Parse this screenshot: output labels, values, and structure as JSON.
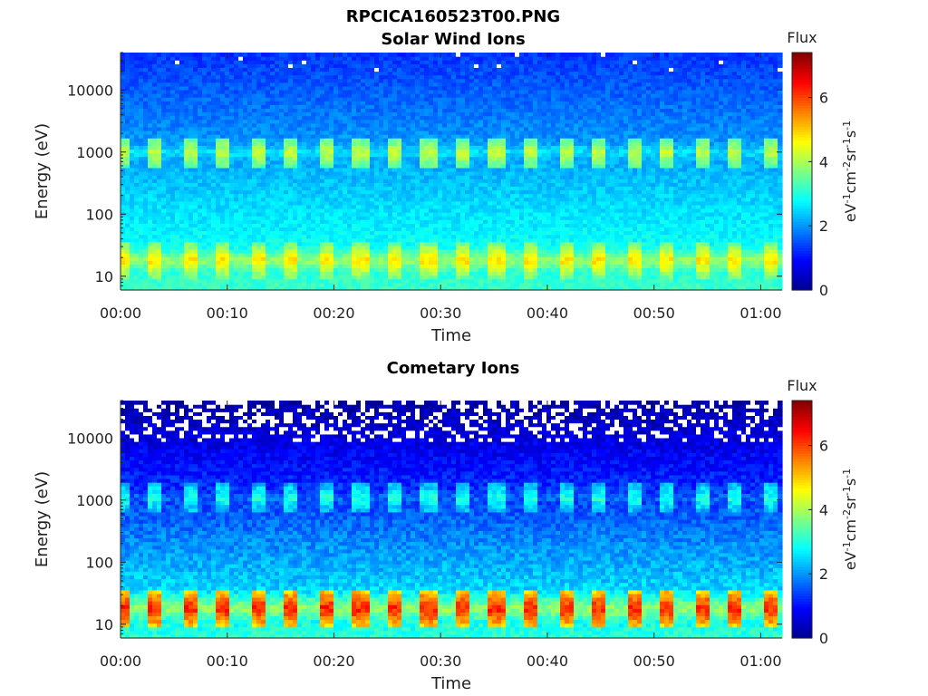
{
  "figure": {
    "title": "RPCICA160523T00.PNG"
  },
  "colors": {
    "colormap": [
      "#00008f",
      "#0000ff",
      "#0080ff",
      "#00ffff",
      "#80ff80",
      "#ffff00",
      "#ff8000",
      "#ff0000",
      "#800000"
    ],
    "missing": "#ffffff",
    "axis": "#222222"
  },
  "chart_data": [
    {
      "type": "heatmap",
      "title": "Solar Wind Ions",
      "xlabel": "Time",
      "ylabel": "Energy (eV)",
      "x_ticks": [
        "00:00",
        "00:10",
        "00:20",
        "00:30",
        "00:40",
        "00:50",
        "01:00"
      ],
      "x_tick_minutes": [
        0,
        10,
        20,
        30,
        40,
        50,
        60
      ],
      "x_range_minutes": [
        0,
        62
      ],
      "y_scale": "log",
      "y_range": [
        6,
        40000
      ],
      "y_ticks": [
        10,
        100,
        1000,
        10000
      ],
      "y_tick_labels": [
        "10",
        "100",
        "1000",
        "10000"
      ],
      "colorbar": {
        "title": "Flux",
        "label": "eV-1cm-2sr-1s-1",
        "range": [
          0,
          7.4
        ],
        "ticks": [
          0,
          2,
          4,
          6
        ],
        "tick_labels": [
          "0",
          "2",
          "4",
          "6"
        ]
      },
      "pulse_period_minutes": 3.2,
      "bands": [
        {
          "name": "high-energy band",
          "energy_center": 1000,
          "peak_flux": 4.2
        },
        {
          "name": "low-energy band",
          "energy_center": 18,
          "peak_flux": 4.9
        }
      ],
      "background_flux": 2.2
    },
    {
      "type": "heatmap",
      "title": "Cometary Ions",
      "xlabel": "Time",
      "ylabel": "Energy (eV)",
      "x_ticks": [
        "00:00",
        "00:10",
        "00:20",
        "00:30",
        "00:40",
        "00:50",
        "01:00"
      ],
      "x_tick_minutes": [
        0,
        10,
        20,
        30,
        40,
        50,
        60
      ],
      "x_range_minutes": [
        0,
        62
      ],
      "y_scale": "log",
      "y_range": [
        6,
        40000
      ],
      "y_ticks": [
        10,
        100,
        1000,
        10000
      ],
      "y_tick_labels": [
        "10",
        "100",
        "1000",
        "10000"
      ],
      "colorbar": {
        "title": "Flux",
        "label": "eV-1cm-2sr-1s-1",
        "range": [
          0,
          7.4
        ],
        "ticks": [
          0,
          2,
          4,
          6
        ],
        "tick_labels": [
          "0",
          "2",
          "4",
          "6"
        ]
      },
      "pulse_period_minutes": 3.2,
      "bands": [
        {
          "name": "high-energy band",
          "energy_center": 1100,
          "peak_flux": 3.0
        },
        {
          "name": "low-energy band",
          "energy_center": 18,
          "peak_flux": 6.3
        }
      ],
      "background_flux": 1.5
    }
  ]
}
